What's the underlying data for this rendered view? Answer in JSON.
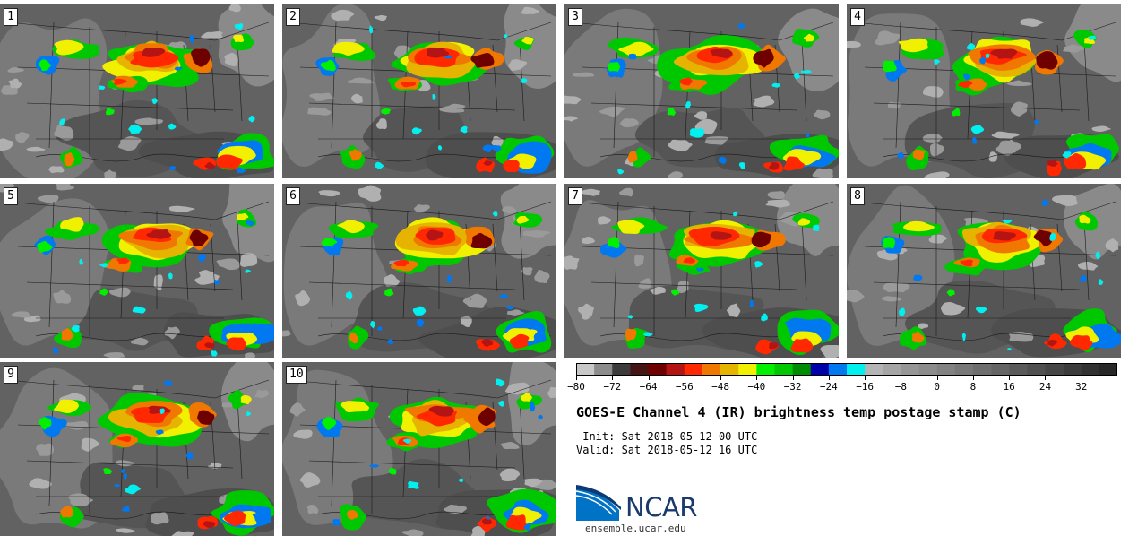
{
  "panels": [
    {
      "label": "1"
    },
    {
      "label": "2"
    },
    {
      "label": "3"
    },
    {
      "label": "4"
    },
    {
      "label": "5"
    },
    {
      "label": "6"
    },
    {
      "label": "7"
    },
    {
      "label": "8"
    },
    {
      "label": "9"
    },
    {
      "label": "10"
    }
  ],
  "colorbar": {
    "colors": [
      "#c8c8c8",
      "#8c8c8c",
      "#3c3c3c",
      "#461414",
      "#6e0000",
      "#b41414",
      "#ff2800",
      "#f07800",
      "#e6b400",
      "#f0f000",
      "#00f000",
      "#00c800",
      "#008c00",
      "#0000aa",
      "#0078f0",
      "#00f0f0",
      "#b4b4b4",
      "#a5a5a5",
      "#969696",
      "#8c8c8c",
      "#828282",
      "#787878",
      "#6e6e6e",
      "#646464",
      "#5a5a5a",
      "#505050",
      "#464646",
      "#3c3c3c",
      "#323232",
      "#282828"
    ],
    "ticks": [
      "−80",
      "−72",
      "−64",
      "−56",
      "−48",
      "−40",
      "−32",
      "−24",
      "−16",
      "−8",
      "0",
      "8",
      "16",
      "24",
      "32"
    ]
  },
  "title": "GOES-E Channel 4 (IR) brightness temp postage stamp (C)",
  "init_line": " Init: Sat 2018-05-12 00 UTC",
  "valid_line": "Valid: Sat 2018-05-12 16 UTC",
  "logo_text": "NCAR",
  "website": "ensemble.ucar.edu"
}
